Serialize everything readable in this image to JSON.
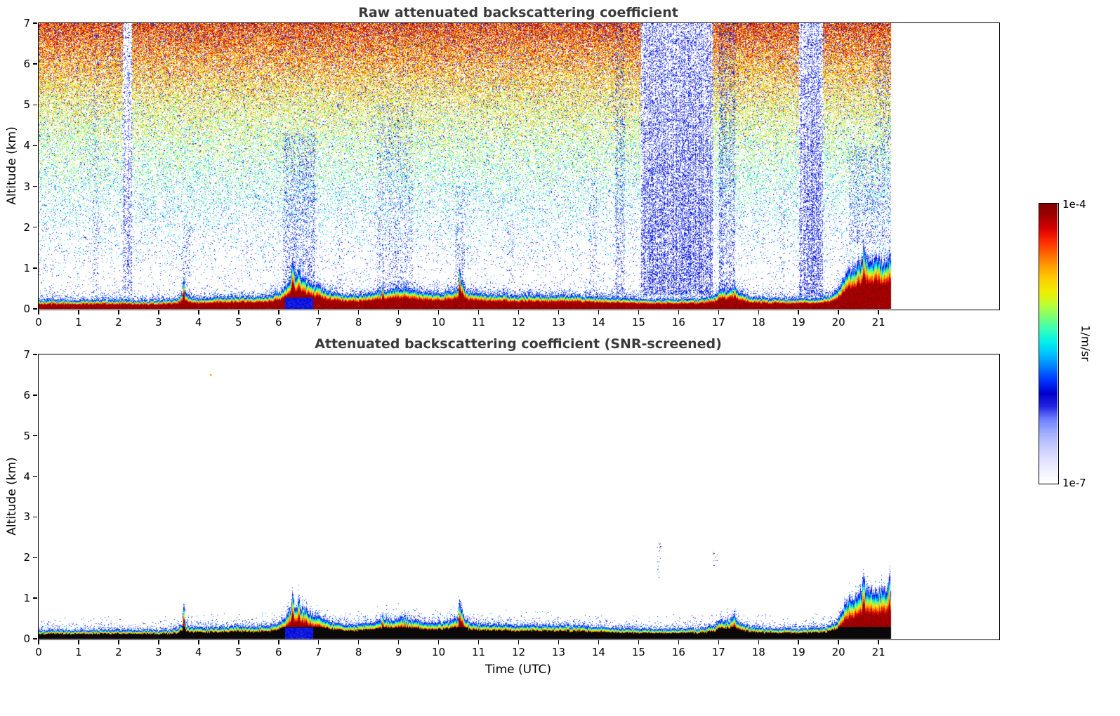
{
  "colorbar": {
    "label_top": "1e-4",
    "label_bottom": "1e-7",
    "unit_label": "1/m/sr",
    "scale": "log",
    "stops_low_to_high": [
      "#ffffff",
      "#f0f0ff",
      "#dcdcff",
      "#c0c8ff",
      "#9aa8ff",
      "#6b7dff",
      "#2222e0",
      "#0000cd",
      "#0033ff",
      "#0077ff",
      "#00bbff",
      "#00eeee",
      "#33ffbb",
      "#77ff77",
      "#bbff33",
      "#eeee00",
      "#ffd000",
      "#ffa000",
      "#ff6600",
      "#ff2a00",
      "#d90000",
      "#a30000",
      "#7f0000"
    ]
  },
  "chart_data": [
    {
      "type": "heatmap",
      "id": "raw",
      "title": "Raw attenuated backscattering coefficient",
      "xlabel": "",
      "ylabel": "Altitude (km)",
      "xlim": [
        0,
        24
      ],
      "ylim": [
        0,
        7
      ],
      "xticks": [
        0,
        1,
        2,
        3,
        4,
        5,
        6,
        7,
        8,
        9,
        10,
        11,
        12,
        13,
        14,
        15,
        16,
        17,
        18,
        19,
        20,
        21
      ],
      "yticks": [
        0,
        1,
        2,
        3,
        4,
        5,
        6,
        7
      ],
      "time_coverage_end": 21.3,
      "value_scale": {
        "units": "1/m/sr",
        "min": "1e-7",
        "max": "1e-4",
        "scale": "log"
      },
      "seed": 20240517,
      "noise": {
        "base": 0.018,
        "gain": 0.86,
        "exponent": 2.0
      },
      "edge_speckle_density": 0.5,
      "boundary_layer": {
        "profile_km": [
          [
            0,
            0.22
          ],
          [
            0.5,
            0.22
          ],
          [
            1,
            0.22
          ],
          [
            1.5,
            0.23
          ],
          [
            2,
            0.23
          ],
          [
            2.5,
            0.22
          ],
          [
            3,
            0.22
          ],
          [
            3.45,
            0.24
          ],
          [
            3.6,
            0.42
          ],
          [
            3.8,
            0.28
          ],
          [
            4.2,
            0.28
          ],
          [
            4.6,
            0.3
          ],
          [
            5,
            0.32
          ],
          [
            5.4,
            0.3
          ],
          [
            5.8,
            0.34
          ],
          [
            6.05,
            0.45
          ],
          [
            6.25,
            0.7
          ],
          [
            6.45,
            0.85
          ],
          [
            6.65,
            0.75
          ],
          [
            6.85,
            0.6
          ],
          [
            7.05,
            0.55
          ],
          [
            7.3,
            0.42
          ],
          [
            7.7,
            0.36
          ],
          [
            8.1,
            0.36
          ],
          [
            8.5,
            0.45
          ],
          [
            8.8,
            0.5
          ],
          [
            9.1,
            0.52
          ],
          [
            9.45,
            0.46
          ],
          [
            9.8,
            0.4
          ],
          [
            10.1,
            0.4
          ],
          [
            10.45,
            0.5
          ],
          [
            10.55,
            0.75
          ],
          [
            10.7,
            0.45
          ],
          [
            11,
            0.38
          ],
          [
            11.5,
            0.36
          ],
          [
            12,
            0.35
          ],
          [
            12.5,
            0.34
          ],
          [
            13,
            0.34
          ],
          [
            13.5,
            0.34
          ],
          [
            14,
            0.3
          ],
          [
            14.5,
            0.28
          ],
          [
            15,
            0.26
          ],
          [
            15.5,
            0.25
          ],
          [
            16,
            0.25
          ],
          [
            16.5,
            0.26
          ],
          [
            16.9,
            0.34
          ],
          [
            17.05,
            0.52
          ],
          [
            17.2,
            0.44
          ],
          [
            17.35,
            0.52
          ],
          [
            17.55,
            0.42
          ],
          [
            17.8,
            0.3
          ],
          [
            18.2,
            0.27
          ],
          [
            18.6,
            0.26
          ],
          [
            19,
            0.26
          ],
          [
            19.4,
            0.27
          ],
          [
            19.7,
            0.3
          ],
          [
            19.95,
            0.45
          ],
          [
            20.1,
            0.75
          ],
          [
            20.25,
            0.95
          ],
          [
            20.4,
            1.05
          ],
          [
            20.55,
            1.2
          ],
          [
            20.65,
            1.3
          ],
          [
            20.8,
            1.2
          ],
          [
            20.95,
            1.25
          ],
          [
            21.1,
            1.2
          ],
          [
            21.2,
            1.28
          ],
          [
            21.3,
            1.3
          ]
        ],
        "spikes": [
          [
            3.62,
            0.8,
            0.03
          ],
          [
            6.35,
            1.2,
            0.05
          ],
          [
            6.5,
            1.05,
            0.04
          ],
          [
            8.6,
            0.68,
            0.03
          ],
          [
            9.15,
            0.66,
            0.03
          ],
          [
            10.52,
            1.0,
            0.035
          ],
          [
            17.4,
            0.68,
            0.03
          ],
          [
            20.62,
            1.62,
            0.05
          ],
          [
            21.27,
            1.5,
            0.04
          ]
        ]
      },
      "rain_patch": {
        "t0": 6.15,
        "t1": 6.85,
        "ztop": 0.28
      },
      "streaks": [
        [
          1.35,
          1.5,
          0.4,
          7,
          0.1
        ],
        [
          2.1,
          2.32,
          0.4,
          7,
          0.3
        ],
        [
          3.55,
          3.78,
          0.3,
          2.2,
          0.12
        ],
        [
          6.1,
          6.9,
          0.6,
          4.3,
          0.22
        ],
        [
          7.4,
          7.6,
          0.4,
          2.5,
          0.08
        ],
        [
          8.45,
          9.35,
          0.5,
          5.0,
          0.12
        ],
        [
          9.0,
          9.25,
          0.4,
          3.2,
          0.15
        ],
        [
          10.4,
          10.65,
          0.6,
          3.0,
          0.15
        ],
        [
          11.7,
          11.9,
          0.3,
          2.2,
          0.06
        ],
        [
          13.75,
          13.95,
          0.3,
          3.5,
          0.08
        ],
        [
          14.4,
          14.65,
          0.3,
          7,
          0.22
        ],
        [
          15.05,
          16.85,
          0.35,
          7,
          0.52
        ],
        [
          17.0,
          17.4,
          0.45,
          7,
          0.26
        ],
        [
          18.5,
          18.65,
          0.3,
          3,
          0.07
        ],
        [
          19.0,
          19.6,
          0.3,
          7,
          0.46
        ],
        [
          20.25,
          21.3,
          1.6,
          4.0,
          0.16
        ],
        [
          20.9,
          21.3,
          1.6,
          6.5,
          0.13
        ]
      ],
      "extra_dots": []
    },
    {
      "type": "heatmap",
      "id": "screened",
      "title": "Attenuated backscattering coefficient (SNR-screened)",
      "xlabel": "Time (UTC)",
      "ylabel": "Altitude (km)",
      "xlim": [
        0,
        24
      ],
      "ylim": [
        0,
        7
      ],
      "xticks": [
        0,
        1,
        2,
        3,
        4,
        5,
        6,
        7,
        8,
        9,
        10,
        11,
        12,
        13,
        14,
        15,
        16,
        17,
        18,
        19,
        20,
        21
      ],
      "yticks": [
        0,
        1,
        2,
        3,
        4,
        5,
        6,
        7
      ],
      "time_coverage_end": 21.3,
      "value_scale": {
        "units": "1/m/sr",
        "min": "1e-7",
        "max": "1e-4",
        "scale": "log"
      },
      "seed": 987654321,
      "noise": null,
      "edge_speckle_density": 0.4,
      "boundary_layer": {
        "profile_km": [
          [
            0,
            0.22
          ],
          [
            0.5,
            0.22
          ],
          [
            1,
            0.22
          ],
          [
            1.5,
            0.23
          ],
          [
            2,
            0.23
          ],
          [
            2.5,
            0.22
          ],
          [
            3,
            0.22
          ],
          [
            3.45,
            0.24
          ],
          [
            3.6,
            0.42
          ],
          [
            3.8,
            0.28
          ],
          [
            4.2,
            0.28
          ],
          [
            4.6,
            0.3
          ],
          [
            5,
            0.32
          ],
          [
            5.4,
            0.3
          ],
          [
            5.8,
            0.34
          ],
          [
            6.05,
            0.45
          ],
          [
            6.25,
            0.7
          ],
          [
            6.45,
            0.85
          ],
          [
            6.65,
            0.75
          ],
          [
            6.85,
            0.6
          ],
          [
            7.05,
            0.55
          ],
          [
            7.3,
            0.42
          ],
          [
            7.7,
            0.36
          ],
          [
            8.1,
            0.36
          ],
          [
            8.5,
            0.45
          ],
          [
            8.8,
            0.5
          ],
          [
            9.1,
            0.52
          ],
          [
            9.45,
            0.46
          ],
          [
            9.8,
            0.4
          ],
          [
            10.1,
            0.4
          ],
          [
            10.45,
            0.5
          ],
          [
            10.55,
            0.75
          ],
          [
            10.7,
            0.45
          ],
          [
            11,
            0.38
          ],
          [
            11.5,
            0.36
          ],
          [
            12,
            0.35
          ],
          [
            12.5,
            0.34
          ],
          [
            13,
            0.34
          ],
          [
            13.5,
            0.34
          ],
          [
            14,
            0.3
          ],
          [
            14.5,
            0.28
          ],
          [
            15,
            0.26
          ],
          [
            15.5,
            0.25
          ],
          [
            16,
            0.25
          ],
          [
            16.5,
            0.26
          ],
          [
            16.9,
            0.34
          ],
          [
            17.05,
            0.52
          ],
          [
            17.2,
            0.44
          ],
          [
            17.35,
            0.52
          ],
          [
            17.55,
            0.42
          ],
          [
            17.8,
            0.3
          ],
          [
            18.2,
            0.27
          ],
          [
            18.6,
            0.26
          ],
          [
            19,
            0.26
          ],
          [
            19.4,
            0.27
          ],
          [
            19.7,
            0.3
          ],
          [
            19.95,
            0.45
          ],
          [
            20.1,
            0.75
          ],
          [
            20.25,
            0.95
          ],
          [
            20.4,
            1.05
          ],
          [
            20.55,
            1.2
          ],
          [
            20.65,
            1.3
          ],
          [
            20.8,
            1.2
          ],
          [
            20.95,
            1.25
          ],
          [
            21.1,
            1.2
          ],
          [
            21.2,
            1.28
          ],
          [
            21.3,
            1.3
          ]
        ],
        "spikes": [
          [
            3.62,
            0.8,
            0.03
          ],
          [
            6.35,
            1.2,
            0.05
          ],
          [
            6.5,
            1.05,
            0.04
          ],
          [
            8.6,
            0.68,
            0.03
          ],
          [
            9.15,
            0.66,
            0.03
          ],
          [
            10.52,
            1.0,
            0.035
          ],
          [
            17.4,
            0.68,
            0.03
          ],
          [
            20.62,
            1.62,
            0.05
          ],
          [
            21.27,
            1.5,
            0.04
          ]
        ]
      },
      "rain_patch": {
        "t0": 6.15,
        "t1": 6.85,
        "ztop": 0.28
      },
      "streaks": [
        [
          15.45,
          15.56,
          1.5,
          2.45,
          0.1
        ],
        [
          16.85,
          16.96,
          1.75,
          2.15,
          0.1
        ]
      ],
      "extra_dots": [
        [
          4.3,
          6.5,
          "#ffa000"
        ]
      ]
    }
  ]
}
